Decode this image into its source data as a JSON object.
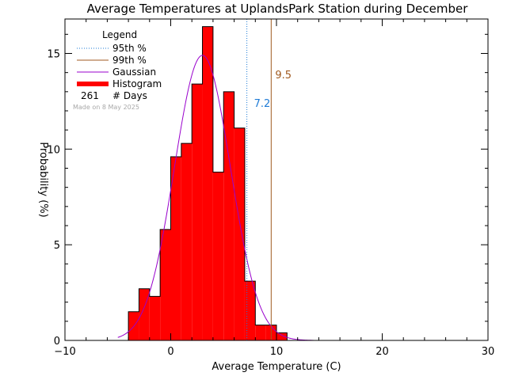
{
  "chart_data": {
    "type": "bar",
    "title": "Average Temperatures at UplandsPark Station during December",
    "xlabel": "Average Temperature (C)",
    "ylabel": "Probability (%)",
    "xlim": [
      -10,
      30
    ],
    "ylim": [
      0,
      16.8
    ],
    "x_ticks": [
      -10,
      0,
      10,
      20,
      30
    ],
    "y_ticks": [
      0,
      5,
      10,
      15
    ],
    "bin_width": 1,
    "bins": [
      {
        "x0": -4,
        "value": 1.5
      },
      {
        "x0": -3,
        "value": 2.7
      },
      {
        "x0": -2,
        "value": 2.3
      },
      {
        "x0": -1,
        "value": 5.8
      },
      {
        "x0": 0,
        "value": 9.6
      },
      {
        "x0": 1,
        "value": 10.3
      },
      {
        "x0": 2,
        "value": 13.4
      },
      {
        "x0": 3,
        "value": 16.4
      },
      {
        "x0": 4,
        "value": 8.8
      },
      {
        "x0": 5,
        "value": 13.0
      },
      {
        "x0": 6,
        "value": 11.1
      },
      {
        "x0": 7,
        "value": 3.1
      },
      {
        "x0": 8,
        "value": 0.8
      },
      {
        "x0": 9,
        "value": 0.8
      },
      {
        "x0": 10,
        "value": 0.4
      }
    ],
    "gaussian": {
      "mean": 3.0,
      "sigma": 2.65,
      "peak": 14.9,
      "color": "#9900cc"
    },
    "percentile_95": {
      "value": 7.2,
      "label": "7.2",
      "color": "#1e7bd6"
    },
    "percentile_99": {
      "value": 9.5,
      "label": "9.5",
      "color": "#a05a20"
    },
    "histogram_color": "#ff0000",
    "legend": {
      "title": "Legend",
      "entries": [
        {
          "label": "95th %",
          "style": "dotted",
          "color": "#1e7bd6"
        },
        {
          "label": "99th %",
          "style": "solid",
          "color": "#a05a20"
        },
        {
          "label": "Gaussian",
          "style": "solid",
          "color": "#9900cc"
        },
        {
          "label": "Histogram",
          "style": "thick",
          "color": "#ff0000"
        }
      ],
      "days_count": "261",
      "days_label": "# Days",
      "note": "Made on 8 May 2025",
      "position": "top-left"
    }
  }
}
